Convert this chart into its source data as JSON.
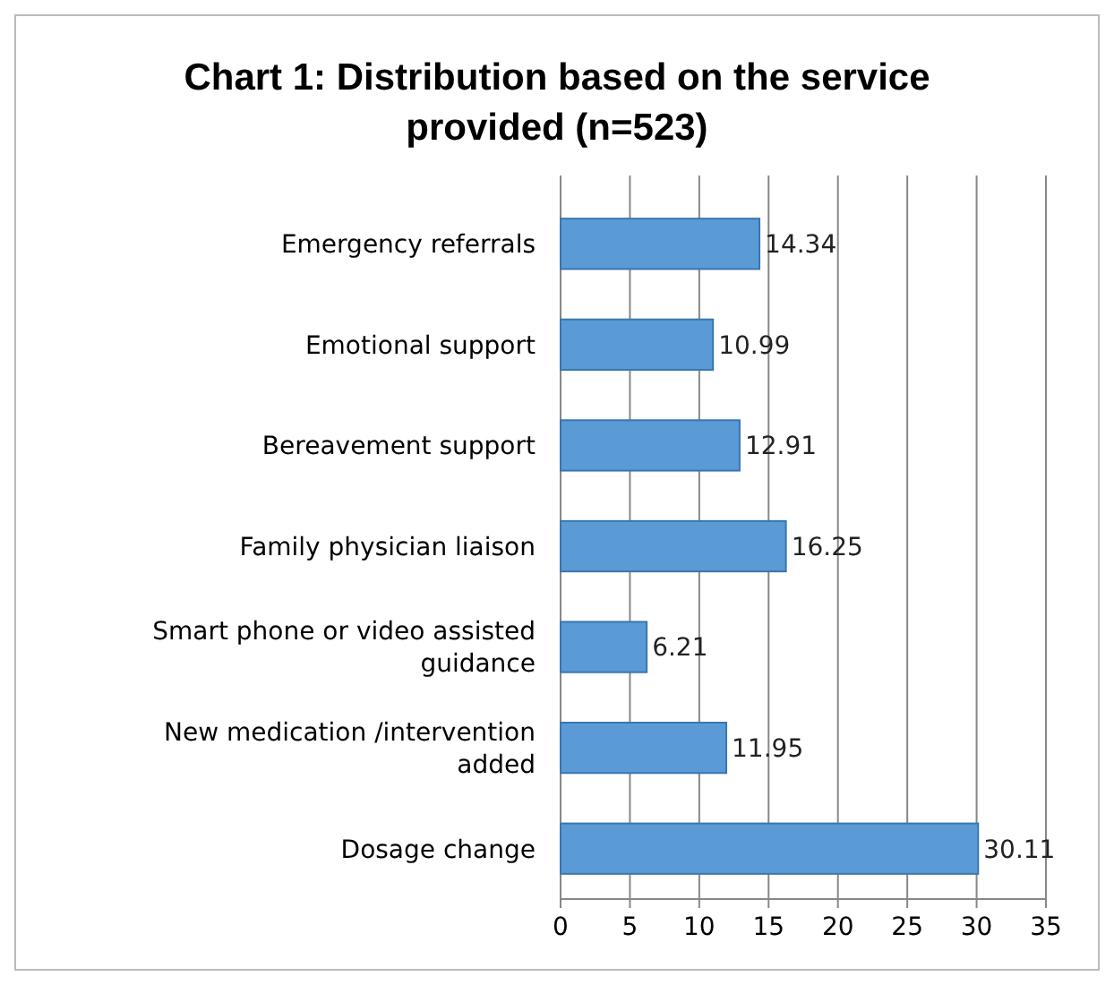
{
  "chart_data": {
    "type": "bar",
    "orientation": "horizontal",
    "title": "Chart 1: Distribution based on the service provided (n=523)",
    "categories": [
      "Emergency referrals",
      "Emotional support",
      "Bereavement support",
      "Family physician liaison",
      "Smart phone or video assisted guidance",
      "New medication /intervention added",
      "Dosage change"
    ],
    "values": [
      14.34,
      10.99,
      12.91,
      16.25,
      6.21,
      11.95,
      30.11
    ],
    "color": "#5b9bd5",
    "xlim": [
      0,
      35
    ],
    "xticks": [
      0,
      5,
      10,
      15,
      20,
      25,
      30,
      35
    ],
    "grid": "x",
    "data_labels": true
  }
}
